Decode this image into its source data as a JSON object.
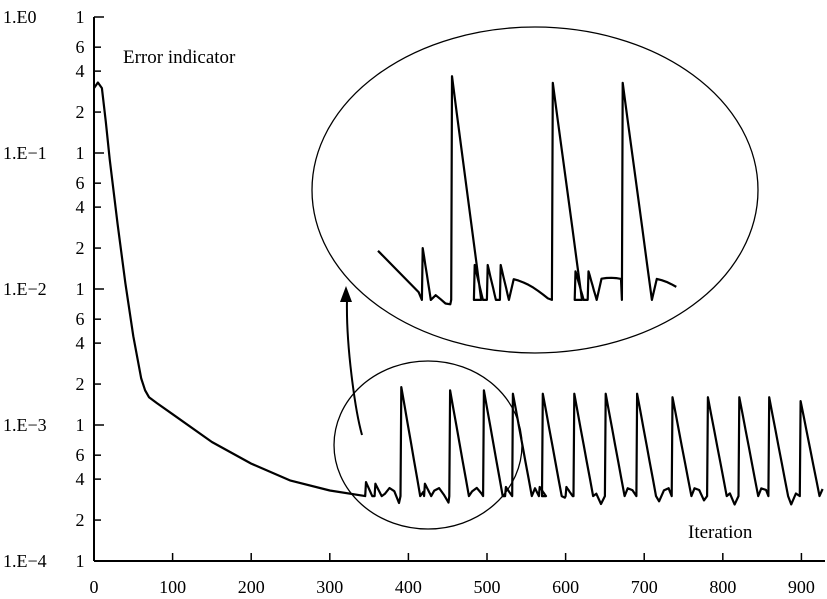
{
  "chart_data": {
    "type": "line",
    "xlabel": "Iteration",
    "ylabel": "Error indicator",
    "xlim": [
      0,
      930
    ],
    "ylim": [
      0.0001,
      1
    ],
    "yscale": "log",
    "grid": false,
    "x_ticks": [
      "0",
      "100",
      "200",
      "300",
      "400",
      "500",
      "600",
      "700",
      "800",
      "900"
    ],
    "y_decade_labels": [
      "1.E0",
      "1.E−1",
      "1.E−2",
      "1.E−3",
      "1.E−4"
    ],
    "y_minor_labels": [
      "1",
      "6",
      "4",
      "2"
    ],
    "series": [
      {
        "values_x": [
          0,
          5,
          10,
          15,
          20,
          30,
          40,
          50,
          60,
          65,
          70,
          80,
          100,
          150,
          200,
          250,
          300,
          345
        ],
        "values_y": [
          0.3,
          0.33,
          0.3,
          0.17,
          0.09,
          0.03,
          0.011,
          0.0045,
          0.0022,
          0.0018,
          0.0016,
          0.00145,
          0.0012,
          0.00075,
          0.00052,
          0.00039,
          0.00033,
          0.0003
        ],
        "spikes": [
          {
            "x": 345,
            "peak": 0.00038
          },
          {
            "x": 357,
            "peak": 0.00037
          },
          {
            "x": 390,
            "peak": 0.0019
          },
          {
            "x": 420,
            "peak": 0.00037
          },
          {
            "x": 452,
            "peak": 0.0018
          },
          {
            "x": 495,
            "peak": 0.0018
          },
          {
            "x": 523,
            "peak": 0.00035
          },
          {
            "x": 532,
            "peak": 0.0017
          },
          {
            "x": 566,
            "peak": 0.00035
          },
          {
            "x": 570,
            "peak": 0.0017
          },
          {
            "x": 600,
            "peak": 0.00035
          },
          {
            "x": 610,
            "peak": 0.0017
          },
          {
            "x": 650,
            "peak": 0.0017
          },
          {
            "x": 690,
            "peak": 0.0017
          },
          {
            "x": 735,
            "peak": 0.0016
          },
          {
            "x": 780,
            "peak": 0.0016
          },
          {
            "x": 820,
            "peak": 0.0016
          },
          {
            "x": 858,
            "peak": 0.0016
          },
          {
            "x": 898,
            "peak": 0.0015
          }
        ],
        "baseline": 0.0003
      }
    ],
    "annotations": [
      "zoomed inset of iterations 345–530"
    ]
  }
}
